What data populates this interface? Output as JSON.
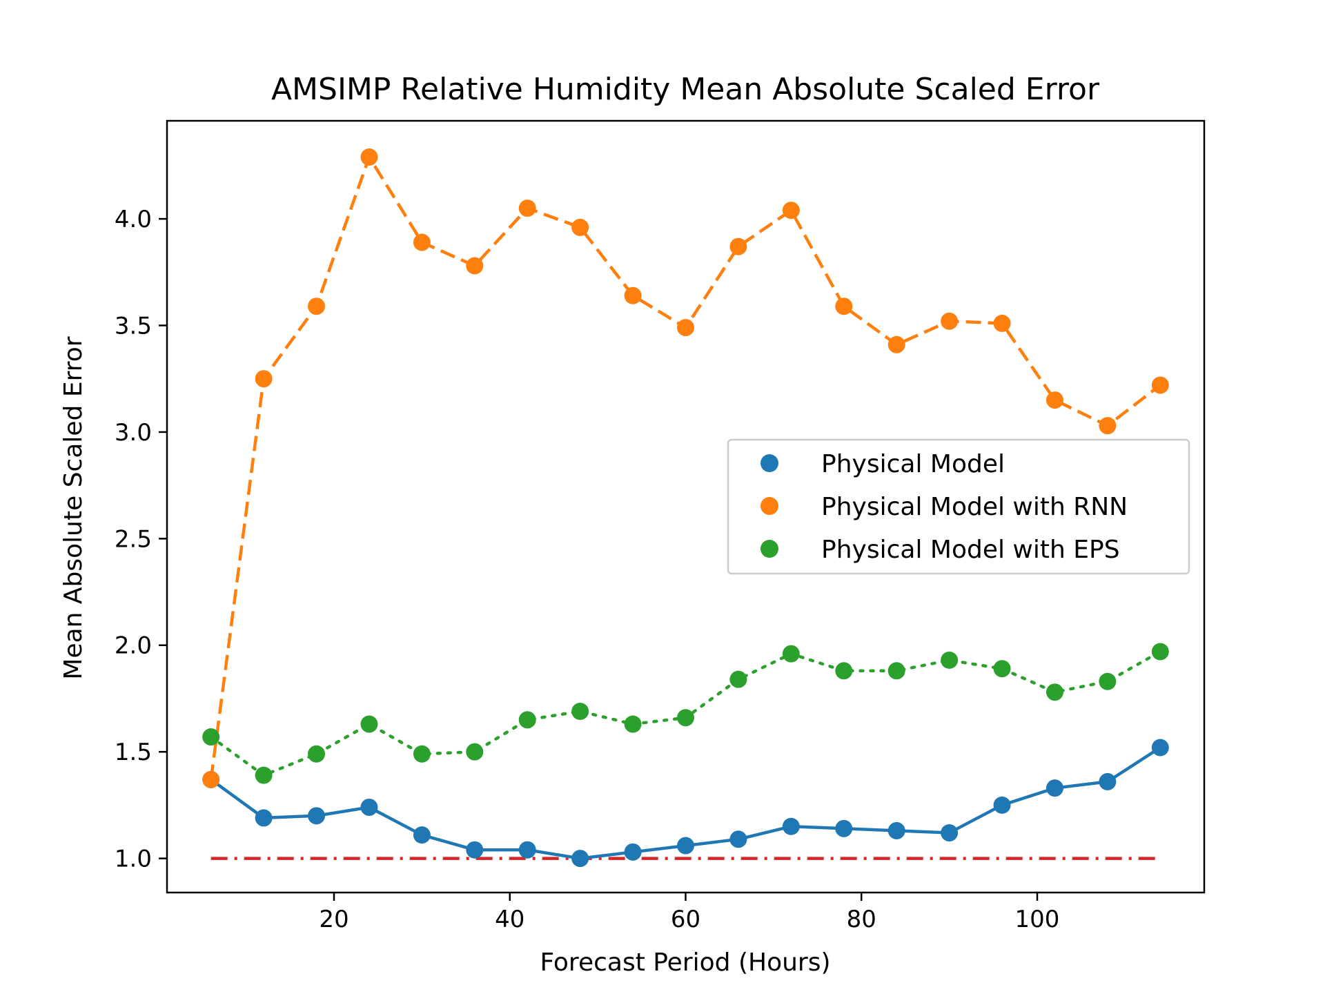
{
  "chart_data": {
    "type": "line",
    "title": "AMSIMP Relative Humidity Mean Absolute Scaled Error",
    "xlabel": "Forecast Period (Hours)",
    "ylabel": "Mean Absolute Scaled Error",
    "xlim": [
      1,
      119
    ],
    "ylim": [
      0.84,
      4.46
    ],
    "xticks": [
      20,
      40,
      60,
      80,
      100
    ],
    "yticks": [
      1.0,
      1.5,
      2.0,
      2.5,
      3.0,
      3.5,
      4.0
    ],
    "ytick_labels": [
      "1.0",
      "1.5",
      "2.0",
      "2.5",
      "3.0",
      "3.5",
      "4.0"
    ],
    "x": [
      6,
      12,
      18,
      24,
      30,
      36,
      42,
      48,
      54,
      60,
      66,
      72,
      78,
      84,
      90,
      96,
      102,
      108,
      114
    ],
    "series": [
      {
        "name": "Physical Model",
        "color": "#1f77b4",
        "line_style": "solid",
        "values": [
          1.37,
          1.19,
          1.2,
          1.24,
          1.11,
          1.04,
          1.04,
          1.0,
          1.03,
          1.06,
          1.09,
          1.15,
          1.14,
          1.13,
          1.12,
          1.25,
          1.33,
          1.36,
          1.52
        ]
      },
      {
        "name": "Physical Model with RNN",
        "color": "#ff7f0e",
        "line_style": "dashed",
        "values": [
          1.37,
          3.25,
          3.59,
          4.29,
          3.89,
          3.78,
          4.05,
          3.96,
          3.64,
          3.49,
          3.87,
          4.04,
          3.59,
          3.41,
          3.52,
          3.51,
          3.15,
          3.03,
          3.22
        ]
      },
      {
        "name": "Physical Model with EPS",
        "color": "#2ca02c",
        "line_style": "dotted",
        "values": [
          1.57,
          1.39,
          1.49,
          1.63,
          1.49,
          1.5,
          1.65,
          1.69,
          1.63,
          1.66,
          1.84,
          1.96,
          1.88,
          1.88,
          1.93,
          1.89,
          1.78,
          1.83,
          1.97
        ]
      }
    ],
    "reference_line": {
      "color": "#d62728",
      "line_style": "dashdot",
      "x_start": 6,
      "x_end": 114,
      "value": 1.0
    },
    "legend": {
      "placement": "center-right",
      "entries": [
        "Physical Model",
        "Physical Model with RNN",
        "Physical Model with EPS"
      ]
    },
    "grid": false
  }
}
